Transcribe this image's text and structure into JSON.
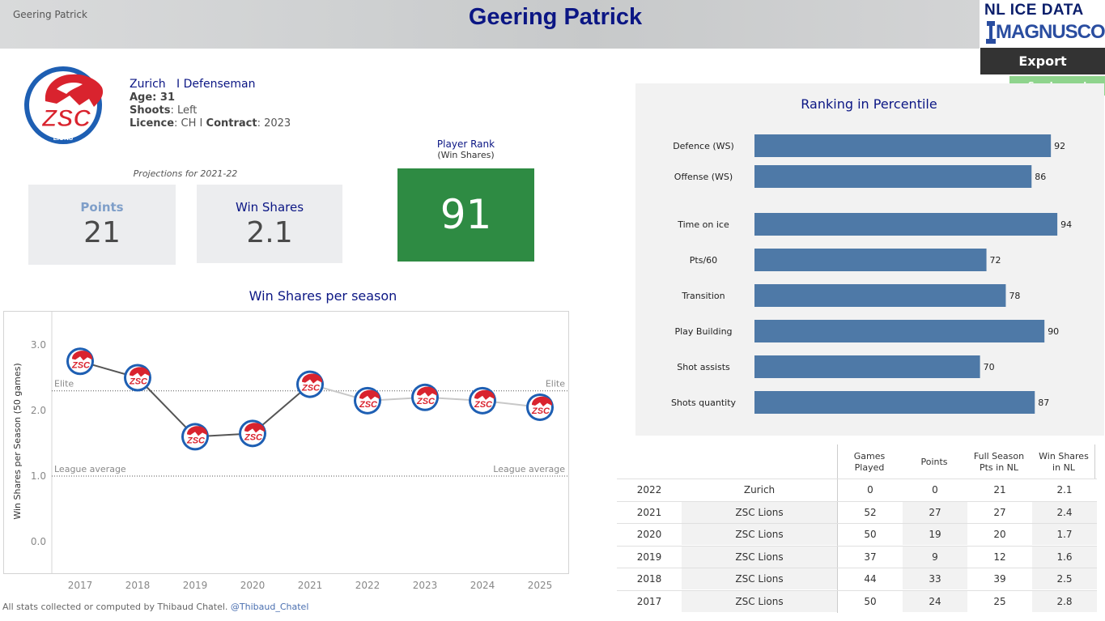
{
  "header": {
    "breadcrumb": "Geering Patrick",
    "title": "Geering Patrick",
    "logo_line1": "NL ICE DATA",
    "logo_line2": "MAGNUSCORSI",
    "export_label": "Export",
    "legend_label": "See Legend"
  },
  "player": {
    "team": "Zurich",
    "separator": "I",
    "position": "Defenseman",
    "age_label": "Age: 31",
    "shoots_label": "Shoots",
    "shoots_value": ": Left",
    "licence_label": "Licence",
    "licence_value": ": CH  I",
    "contract_label": "Contract",
    "contract_value": ": 2023"
  },
  "projections": {
    "label": "Projections for 2021-22",
    "points_label": "Points",
    "points_value": "21",
    "ws_label": "Win Shares",
    "ws_value": "2.1"
  },
  "rank": {
    "title": "Player Rank",
    "subtitle": "(Win Shares)",
    "value": "91",
    "color": "#2e8b43"
  },
  "chart_data": [
    {
      "type": "line",
      "title": "Win Shares per season",
      "xlabel": "",
      "ylabel": "Win Shares per Season (50 games)",
      "categories": [
        "2017",
        "2018",
        "2019",
        "2020",
        "2021",
        "2022",
        "2023",
        "2024",
        "2025"
      ],
      "series": [
        {
          "name": "Win Shares",
          "values": [
            2.75,
            2.5,
            1.6,
            1.65,
            2.4,
            2.15,
            2.2,
            2.15,
            2.05
          ]
        }
      ],
      "ylim": [
        -0.3,
        3.4
      ],
      "yticks": [
        0.0,
        1.0,
        2.0,
        3.0
      ],
      "ytick_labels": [
        "0.0",
        "1.0",
        "2.0",
        "3.0"
      ],
      "reference_lines": [
        {
          "label": "Elite",
          "value": 2.3
        },
        {
          "label": "League average",
          "value": 1.0
        }
      ],
      "line_color": "#555555",
      "projection_color": "#c8c8c8"
    },
    {
      "type": "bar",
      "orientation": "horizontal",
      "title": "Ranking in Percentile",
      "categories": [
        "Defence (WS)",
        "Offense (WS)",
        "Time on ice",
        "Pts/60",
        "Transition",
        "Play Building",
        "Shot assists",
        "Shots quantity"
      ],
      "values": [
        92,
        86,
        94,
        72,
        78,
        90,
        70,
        87
      ],
      "xlim": [
        0,
        100
      ],
      "color": "#4e79a7"
    }
  ],
  "table": {
    "headers": [
      "Games Played",
      "Points",
      "Full Season Pts in NL",
      "Win Shares in NL"
    ],
    "header_lines": [
      [
        "Games",
        "Played"
      ],
      [
        "Points"
      ],
      [
        "Full Season",
        "Pts in NL"
      ],
      [
        "Win Shares",
        "in NL"
      ]
    ],
    "rows": [
      {
        "season": "2022",
        "team": "Zurich",
        "games": "0",
        "points": "0",
        "full_pts": "21",
        "ws": "2.1"
      },
      {
        "season": "2021",
        "team": "ZSC Lions",
        "games": "52",
        "points": "27",
        "full_pts": "27",
        "ws": "2.4"
      },
      {
        "season": "2020",
        "team": "ZSC Lions",
        "games": "50",
        "points": "19",
        "full_pts": "20",
        "ws": "1.7"
      },
      {
        "season": "2019",
        "team": "ZSC Lions",
        "games": "37",
        "points": "9",
        "full_pts": "12",
        "ws": "1.6"
      },
      {
        "season": "2018",
        "team": "ZSC Lions",
        "games": "44",
        "points": "33",
        "full_pts": "39",
        "ws": "2.5"
      },
      {
        "season": "2017",
        "team": "ZSC Lions",
        "games": "50",
        "points": "24",
        "full_pts": "25",
        "ws": "2.8"
      }
    ]
  },
  "footer": {
    "credit": "All stats collected or computed by Thibaud Chatel.",
    "handle": "@Thibaud_Chatel"
  },
  "logo": {
    "text": "ZSC",
    "subtext": "LIONS"
  }
}
